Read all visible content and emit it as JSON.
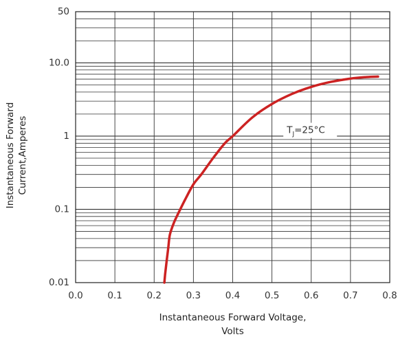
{
  "chart_data": {
    "type": "line",
    "title": "",
    "xlabel_line1": "Instantaneous Forward Voltage,",
    "xlabel_line2": "Volts",
    "ylabel_line1": "Instantaneous Forward",
    "ylabel_line2": "Current,Amperes",
    "x_scale": "linear",
    "y_scale": "log",
    "xlim": [
      0.0,
      0.8
    ],
    "ylim": [
      0.01,
      50
    ],
    "x_tick_labels": [
      "0.0",
      "0.1",
      "0.2",
      "0.3",
      "0.4",
      "0.5",
      "0.6",
      "0.7",
      "0.8"
    ],
    "y_tick_labels": [
      {
        "value": 0.01,
        "label": "0.01"
      },
      {
        "value": 0.1,
        "label": "0.1"
      },
      {
        "value": 1,
        "label": "1"
      },
      {
        "value": 10,
        "label": "10.0"
      },
      {
        "value": 50,
        "label": "50"
      }
    ],
    "grid": true,
    "series": [
      {
        "color": "#cc2222",
        "x": [
          0.226,
          0.228,
          0.232,
          0.236,
          0.24,
          0.25,
          0.26,
          0.28,
          0.3,
          0.32,
          0.35,
          0.38,
          0.4,
          0.45,
          0.5,
          0.55,
          0.6,
          0.65,
          0.7,
          0.74,
          0.77
        ],
        "y": [
          0.01,
          0.013,
          0.02,
          0.03,
          0.045,
          0.065,
          0.085,
          0.14,
          0.22,
          0.3,
          0.5,
          0.8,
          1.0,
          1.8,
          2.75,
          3.75,
          4.7,
          5.5,
          6.1,
          6.4,
          6.5
        ]
      }
    ],
    "annotation": {
      "prefix": "T",
      "subscript": "J",
      "suffix": "=25°C",
      "x": 0.55,
      "y": 1.1
    }
  }
}
